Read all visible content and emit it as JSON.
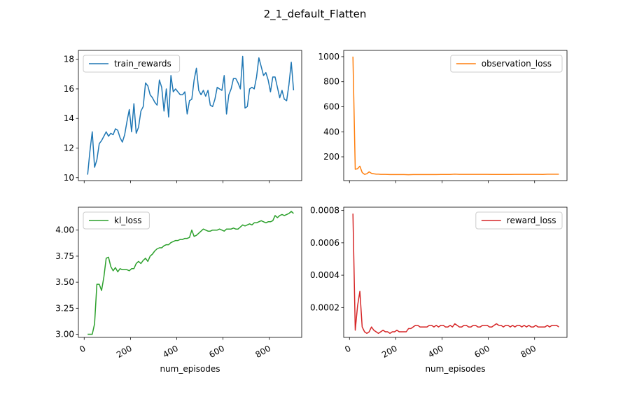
{
  "figure": {
    "title": "2_1_default_Flatten"
  },
  "chart_data": [
    {
      "type": "line",
      "panel": "top-left",
      "legend": "upper left",
      "grid": false,
      "xlabel": "",
      "ylabel": "",
      "xlim": [
        -25,
        940
      ],
      "ylim": [
        9.8,
        18.6
      ],
      "xticks": [
        0,
        200,
        400,
        600,
        800
      ],
      "yticks": [
        10,
        12,
        14,
        16,
        18
      ],
      "ytick_labels": [
        "10",
        "12",
        "14",
        "16",
        "18"
      ],
      "show_xtick_labels": false,
      "color": "#1f77b4",
      "series": [
        {
          "name": "train_rewards",
          "x": [
            15,
            25,
            35,
            45,
            55,
            65,
            75,
            85,
            95,
            105,
            115,
            125,
            135,
            145,
            155,
            165,
            175,
            185,
            195,
            205,
            215,
            225,
            235,
            245,
            255,
            265,
            275,
            285,
            295,
            305,
            315,
            325,
            335,
            345,
            355,
            365,
            375,
            385,
            395,
            405,
            415,
            425,
            435,
            445,
            455,
            465,
            475,
            485,
            495,
            505,
            515,
            525,
            535,
            545,
            555,
            565,
            575,
            585,
            595,
            605,
            615,
            625,
            635,
            645,
            655,
            665,
            675,
            685,
            695,
            705,
            715,
            725,
            735,
            745,
            755,
            765,
            775,
            785,
            795,
            805,
            815,
            825,
            835,
            845,
            855,
            865,
            875,
            885,
            895,
            905
          ],
          "values": [
            10.2,
            11.8,
            13.1,
            10.7,
            11.2,
            12.3,
            12.5,
            12.8,
            13.1,
            12.8,
            13.0,
            12.9,
            13.3,
            13.2,
            12.7,
            12.4,
            12.9,
            13.8,
            14.6,
            13.1,
            15.0,
            13.0,
            13.4,
            14.5,
            14.8,
            16.4,
            16.2,
            15.6,
            15.4,
            15.1,
            14.9,
            16.6,
            16.1,
            14.5,
            16.0,
            14.1,
            16.9,
            15.8,
            16.0,
            15.8,
            15.6,
            15.6,
            15.8,
            14.3,
            15.2,
            15.3,
            16.6,
            17.4,
            15.9,
            15.6,
            15.9,
            15.5,
            15.9,
            14.9,
            14.8,
            15.3,
            16.1,
            16.0,
            15.9,
            16.9,
            14.3,
            15.6,
            16.0,
            16.7,
            16.7,
            16.4,
            16.0,
            18.2,
            14.7,
            14.8,
            16.0,
            16.1,
            16.0,
            16.8,
            18.1,
            17.5,
            16.9,
            17.1,
            16.6,
            15.8,
            16.8,
            16.8,
            16.1,
            15.4,
            15.9,
            15.3,
            15.2,
            16.3,
            17.8,
            15.9
          ]
        }
      ]
    },
    {
      "type": "line",
      "panel": "top-right",
      "legend": "upper right",
      "grid": false,
      "xlabel": "",
      "ylabel": "",
      "xlim": [
        -25,
        940
      ],
      "ylim": [
        10,
        1050
      ],
      "xticks": [
        0,
        200,
        400,
        600,
        800
      ],
      "yticks": [
        200,
        400,
        600,
        800,
        1000
      ],
      "ytick_labels": [
        "200",
        "400",
        "600",
        "800",
        "1000"
      ],
      "show_xtick_labels": false,
      "color": "#ff7f0e",
      "series": [
        {
          "name": "observation_loss",
          "x": [
            15,
            25,
            35,
            45,
            55,
            65,
            75,
            85,
            95,
            105,
            115,
            125,
            135,
            145,
            155,
            175,
            195,
            215,
            235,
            255,
            275,
            295,
            315,
            335,
            355,
            375,
            395,
            415,
            435,
            455,
            475,
            495,
            515,
            535,
            555,
            575,
            595,
            615,
            635,
            655,
            675,
            695,
            715,
            735,
            755,
            775,
            795,
            815,
            835,
            855,
            875,
            895,
            905
          ],
          "values": [
            1000,
            100,
            105,
            125,
            75,
            60,
            65,
            80,
            68,
            65,
            62,
            62,
            60,
            60,
            60,
            58,
            58,
            58,
            58,
            57,
            58,
            58,
            58,
            58,
            58,
            58,
            59,
            59,
            59,
            62,
            60,
            60,
            60,
            60,
            60,
            60,
            60,
            59,
            59,
            59,
            59,
            59,
            60,
            60,
            60,
            60,
            60,
            60,
            59,
            61,
            61,
            61,
            61
          ]
        }
      ]
    },
    {
      "type": "line",
      "panel": "bottom-left",
      "legend": "upper left",
      "grid": false,
      "xlabel": "num_episodes",
      "ylabel": "",
      "xlim": [
        -25,
        940
      ],
      "ylim": [
        2.97,
        4.22
      ],
      "xticks": [
        0,
        200,
        400,
        600,
        800
      ],
      "xtick_labels": [
        "0",
        "200",
        "400",
        "600",
        "800"
      ],
      "yticks": [
        3.0,
        3.25,
        3.5,
        3.75,
        4.0
      ],
      "ytick_labels": [
        "3.00",
        "3.25",
        "3.50",
        "3.75",
        "4.00"
      ],
      "show_xtick_labels": true,
      "color": "#2ca02c",
      "series": [
        {
          "name": "kl_loss",
          "x": [
            15,
            25,
            35,
            45,
            55,
            65,
            75,
            85,
            95,
            105,
            115,
            125,
            135,
            145,
            155,
            165,
            175,
            185,
            195,
            205,
            215,
            225,
            235,
            245,
            255,
            265,
            275,
            285,
            295,
            305,
            315,
            325,
            335,
            345,
            355,
            365,
            375,
            385,
            395,
            405,
            415,
            425,
            435,
            445,
            455,
            465,
            475,
            485,
            495,
            505,
            515,
            525,
            535,
            545,
            555,
            565,
            575,
            585,
            595,
            605,
            615,
            625,
            635,
            645,
            655,
            665,
            675,
            685,
            695,
            705,
            715,
            725,
            735,
            745,
            755,
            765,
            775,
            785,
            795,
            805,
            815,
            825,
            835,
            845,
            855,
            865,
            875,
            885,
            895,
            905
          ],
          "values": [
            3.0,
            3.0,
            3.0,
            3.1,
            3.48,
            3.48,
            3.42,
            3.55,
            3.73,
            3.74,
            3.65,
            3.61,
            3.64,
            3.6,
            3.63,
            3.62,
            3.62,
            3.62,
            3.61,
            3.63,
            3.63,
            3.68,
            3.7,
            3.68,
            3.71,
            3.73,
            3.7,
            3.75,
            3.77,
            3.8,
            3.82,
            3.83,
            3.83,
            3.85,
            3.86,
            3.86,
            3.88,
            3.89,
            3.9,
            3.9,
            3.91,
            3.91,
            3.92,
            3.92,
            3.93,
            4.0,
            3.94,
            3.95,
            3.97,
            3.99,
            4.01,
            4.0,
            3.99,
            3.99,
            4.0,
            4.0,
            4.0,
            4.01,
            4.0,
            3.99,
            4.01,
            4.01,
            4.01,
            4.02,
            4.01,
            4.01,
            4.03,
            4.05,
            4.04,
            4.05,
            4.06,
            4.05,
            4.07,
            4.07,
            4.08,
            4.09,
            4.08,
            4.07,
            4.08,
            4.08,
            4.09,
            4.14,
            4.12,
            4.14,
            4.15,
            4.14,
            4.15,
            4.16,
            4.18,
            4.16
          ]
        }
      ]
    },
    {
      "type": "line",
      "panel": "bottom-right",
      "legend": "upper right",
      "grid": false,
      "xlabel": "num_episodes",
      "ylabel": "",
      "xlim": [
        -25,
        940
      ],
      "ylim": [
        1.55e-05,
        0.00082
      ],
      "xticks": [
        0,
        200,
        400,
        600,
        800
      ],
      "xtick_labels": [
        "0",
        "200",
        "400",
        "600",
        "800"
      ],
      "yticks": [
        0.0002,
        0.0004,
        0.0006,
        0.0008
      ],
      "ytick_labels": [
        "0.0002",
        "0.0004",
        "0.0006",
        "0.0008"
      ],
      "show_xtick_labels": true,
      "color": "#d62728",
      "series": [
        {
          "name": "reward_loss",
          "x": [
            15,
            25,
            35,
            45,
            55,
            65,
            75,
            85,
            95,
            105,
            115,
            125,
            135,
            145,
            155,
            165,
            175,
            185,
            195,
            205,
            215,
            225,
            235,
            245,
            255,
            265,
            275,
            285,
            295,
            305,
            315,
            325,
            335,
            345,
            355,
            365,
            375,
            385,
            395,
            405,
            415,
            425,
            435,
            445,
            455,
            465,
            475,
            485,
            495,
            505,
            515,
            525,
            535,
            545,
            555,
            565,
            575,
            585,
            595,
            605,
            615,
            625,
            635,
            645,
            655,
            665,
            675,
            685,
            695,
            705,
            715,
            725,
            735,
            745,
            755,
            765,
            775,
            785,
            795,
            805,
            815,
            825,
            835,
            845,
            855,
            865,
            875,
            885,
            895,
            905
          ],
          "values": [
            0.00078,
            6e-05,
            0.00021,
            0.0003,
            8e-05,
            5e-05,
            4e-05,
            5e-05,
            8e-05,
            6e-05,
            5e-05,
            4e-05,
            5e-05,
            6e-05,
            5e-05,
            5e-05,
            4e-05,
            5e-05,
            5e-05,
            6e-05,
            5e-05,
            5e-05,
            5e-05,
            5e-05,
            7e-05,
            7e-05,
            8e-05,
            9e-05,
            9e-05,
            8e-05,
            8e-05,
            8e-05,
            8e-05,
            9e-05,
            9e-05,
            8e-05,
            9e-05,
            8e-05,
            9e-05,
            9e-05,
            8e-05,
            8e-05,
            9e-05,
            8e-05,
            0.0001,
            9e-05,
            8e-05,
            8e-05,
            9e-05,
            9e-05,
            8e-05,
            8e-05,
            9e-05,
            9e-05,
            8e-05,
            8e-05,
            9e-05,
            9e-05,
            9e-05,
            8e-05,
            8e-05,
            9e-05,
            0.0001,
            9e-05,
            9e-05,
            8e-05,
            9e-05,
            9e-05,
            8e-05,
            9e-05,
            8e-05,
            9e-05,
            9e-05,
            8e-05,
            9e-05,
            8e-05,
            9e-05,
            8e-05,
            8e-05,
            9e-05,
            8e-05,
            8e-05,
            8e-05,
            8e-05,
            9e-05,
            8e-05,
            9e-05,
            9e-05,
            9e-05,
            8e-05
          ]
        }
      ]
    }
  ]
}
